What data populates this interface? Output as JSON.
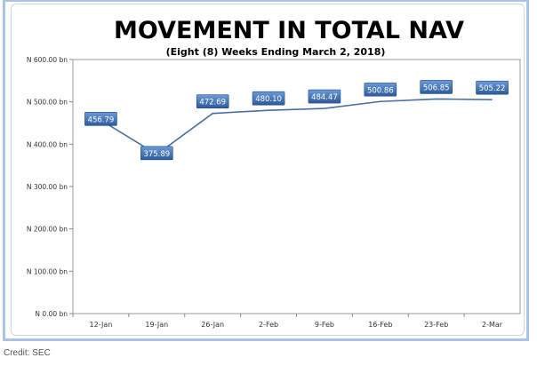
{
  "credit": "Credit: SEC",
  "chart_data": {
    "type": "line",
    "title": "MOVEMENT IN TOTAL NAV",
    "subtitle": "(Eight (8) Weeks Ending March 2, 2018)",
    "categories": [
      "12-Jan",
      "19-Jan",
      "26-Jan",
      "2-Feb",
      "9-Feb",
      "16-Feb",
      "23-Feb",
      "2-Mar"
    ],
    "values": [
      456.79,
      375.89,
      472.69,
      480.1,
      484.47,
      500.86,
      506.85,
      505.22
    ],
    "data_labels": [
      "456.79",
      "375.89",
      "472.69",
      "480.10",
      "484.47",
      "500.86",
      "506.85",
      "505.22"
    ],
    "yticks": [
      "N 0.00 bn",
      "N 100.00 bn",
      "N 200.00 bn",
      "N 300.00 bn",
      "N 400.00 bn",
      "N 500.00 bn",
      "N 600.00 bn"
    ],
    "ylim": [
      0,
      600
    ],
    "line_color": "#4a6fa5",
    "label_color": "#3a6cb0"
  }
}
